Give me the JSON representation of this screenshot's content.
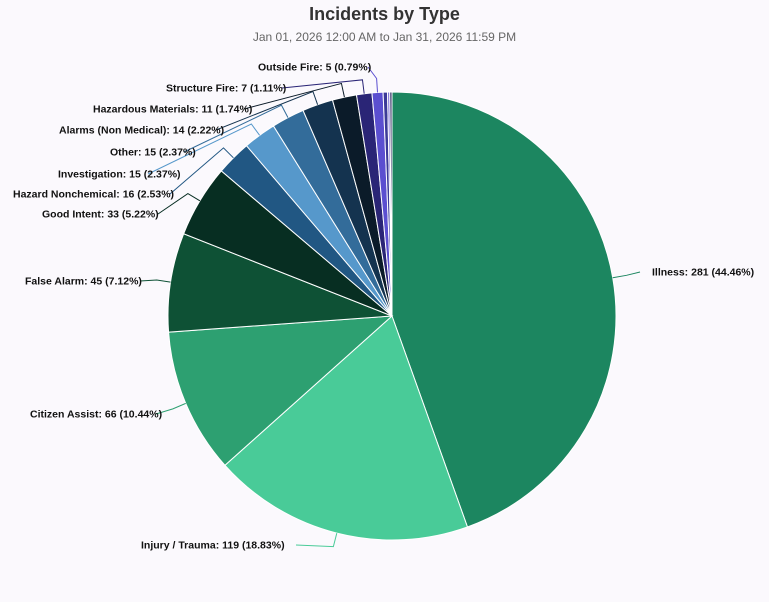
{
  "chart_data": {
    "type": "pie",
    "title": "Incidents by Type",
    "subtitle": "Jan 01, 2026 12:00 AM to Jan 31, 2026 11:59 PM",
    "start_angle_deg": 0,
    "direction": "clockwise",
    "slices": [
      {
        "name": "Illness",
        "value": 281,
        "percent": 44.46,
        "color": "#1c8660",
        "label": "Illness: 281 (44.46%)"
      },
      {
        "name": "Injury / Trauma",
        "value": 119,
        "percent": 18.83,
        "color": "#49cb98",
        "label": "Injury / Trauma: 119 (18.83%)"
      },
      {
        "name": "Citizen Assist",
        "value": 66,
        "percent": 10.44,
        "color": "#2da071",
        "label": "Citizen Assist: 66 (10.44%)"
      },
      {
        "name": "False Alarm",
        "value": 45,
        "percent": 7.12,
        "color": "#0e5135",
        "label": "False Alarm: 45 (7.12%)"
      },
      {
        "name": "Good Intent",
        "value": 33,
        "percent": 5.22,
        "color": "#072e22",
        "label": "Good Intent: 33 (5.22%)"
      },
      {
        "name": "Hazard Nonchemical",
        "value": 16,
        "percent": 2.53,
        "color": "#215783",
        "label": "Hazard Nonchemical: 16 (2.53%)"
      },
      {
        "name": "Investigation",
        "value": 15,
        "percent": 2.37,
        "color": "#5698cb",
        "label": "Investigation: 15 (2.37%)"
      },
      {
        "name": "Other",
        "value": 15,
        "percent": 2.37,
        "color": "#336c9a",
        "label": "Other: 15 (2.37%)"
      },
      {
        "name": "Alarms (Non Medical)",
        "value": 14,
        "percent": 2.22,
        "color": "#14334f",
        "label": "Alarms (Non Medical): 14 (2.22%)"
      },
      {
        "name": "Hazardous Materials",
        "value": 11,
        "percent": 1.74,
        "color": "#0b1b29",
        "label": "Hazardous Materials: 11 (1.74%)"
      },
      {
        "name": "Structure Fire",
        "value": 7,
        "percent": 1.11,
        "color": "#2a2576",
        "label": "Structure Fire: 7 (1.11%)"
      },
      {
        "name": "Outside Fire",
        "value": 5,
        "percent": 0.79,
        "color": "#5b4fd0",
        "label": "Outside Fire: 5 (0.79%)"
      },
      {
        "name": "",
        "value": 2,
        "percent": 0.32,
        "color": "#3b3a98",
        "label": ""
      },
      {
        "name": "",
        "value": 1,
        "percent": 0.16,
        "color": "#7a6bd8",
        "label": ""
      },
      {
        "name": "",
        "value": 1,
        "percent": 0.16,
        "color": "#2a2a60",
        "label": ""
      }
    ]
  }
}
